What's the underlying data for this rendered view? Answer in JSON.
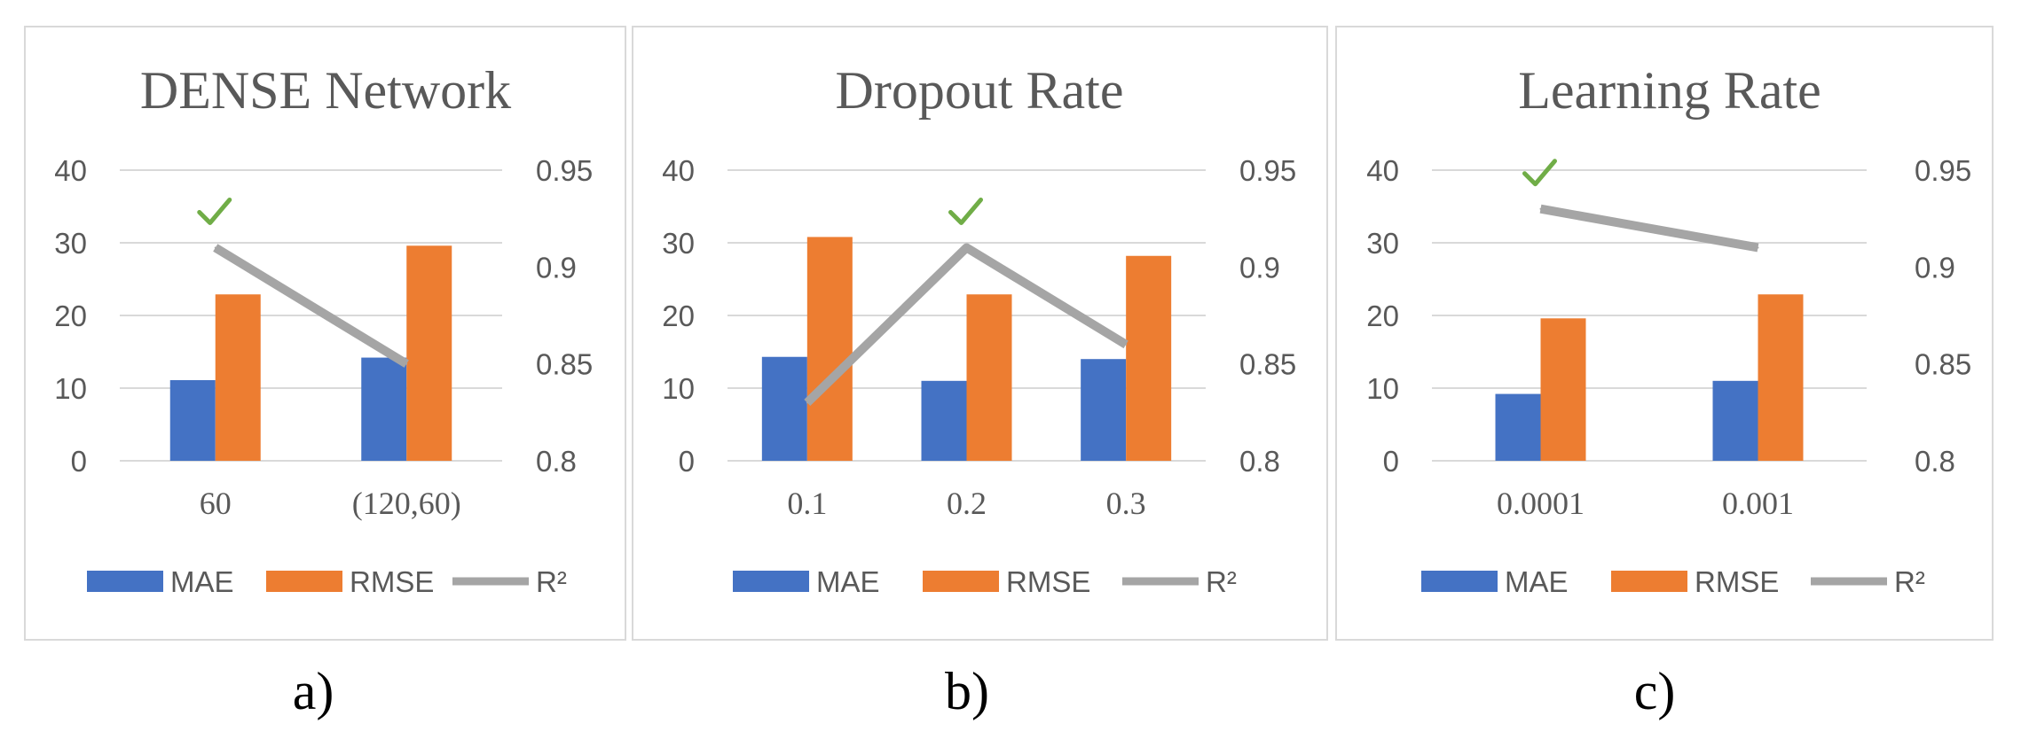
{
  "colors": {
    "mae": "#4472c4",
    "rmse": "#ed7d31",
    "r2": "#a5a5a5",
    "check": "#70ad47",
    "grid": "#d9d9d9",
    "border": "#d9d9d9"
  },
  "legend": {
    "mae": "MAE",
    "rmse": "RMSE",
    "r2": "R²"
  },
  "check_icon": "check-mark-icon",
  "chart_data": [
    {
      "type": "bar+line",
      "title": "DENSE Network",
      "panel_label": "a)",
      "categories": [
        "60",
        "(120,60)"
      ],
      "series": [
        {
          "name": "MAE",
          "axis": "left",
          "values": [
            11.1,
            14.2
          ]
        },
        {
          "name": "RMSE",
          "axis": "left",
          "values": [
            22.9,
            29.6
          ]
        },
        {
          "name": "R²",
          "axis": "right",
          "kind": "line",
          "values": [
            0.91,
            0.85
          ]
        }
      ],
      "left_axis": {
        "min": 0,
        "max": 40,
        "ticks": [
          "0",
          "10",
          "20",
          "30",
          "40"
        ]
      },
      "right_axis": {
        "min": 0.8,
        "max": 0.95,
        "ticks": [
          "0.8",
          "0.85",
          "0.9",
          "0.95"
        ]
      },
      "best_index": 0,
      "grid": true,
      "legend_position": "bottom"
    },
    {
      "type": "bar+line",
      "title": "Dropout Rate",
      "panel_label": "b)",
      "categories": [
        "0.1",
        "0.2",
        "0.3"
      ],
      "series": [
        {
          "name": "MAE",
          "axis": "left",
          "values": [
            14.3,
            11.0,
            14.0
          ]
        },
        {
          "name": "RMSE",
          "axis": "left",
          "values": [
            30.8,
            22.9,
            28.2
          ]
        },
        {
          "name": "R²",
          "axis": "right",
          "kind": "line",
          "values": [
            0.83,
            0.91,
            0.86
          ]
        }
      ],
      "left_axis": {
        "min": 0,
        "max": 40,
        "ticks": [
          "0",
          "10",
          "20",
          "30",
          "40"
        ]
      },
      "right_axis": {
        "min": 0.8,
        "max": 0.95,
        "ticks": [
          "0.8",
          "0.85",
          "0.9",
          "0.95"
        ]
      },
      "best_index": 1,
      "grid": true,
      "legend_position": "bottom"
    },
    {
      "type": "bar+line",
      "title": "Learning Rate",
      "panel_label": "c)",
      "categories": [
        "0.0001",
        "0.001"
      ],
      "series": [
        {
          "name": "MAE",
          "axis": "left",
          "values": [
            9.2,
            11.0
          ]
        },
        {
          "name": "RMSE",
          "axis": "left",
          "values": [
            19.6,
            22.9
          ]
        },
        {
          "name": "R²",
          "axis": "right",
          "kind": "line",
          "values": [
            0.93,
            0.91
          ]
        }
      ],
      "left_axis": {
        "min": 0,
        "max": 40,
        "ticks": [
          "0",
          "10",
          "20",
          "30",
          "40"
        ]
      },
      "right_axis": {
        "min": 0.8,
        "max": 0.95,
        "ticks": [
          "0.8",
          "0.85",
          "0.9",
          "0.95"
        ]
      },
      "best_index": 0,
      "grid": true,
      "legend_position": "bottom"
    }
  ]
}
